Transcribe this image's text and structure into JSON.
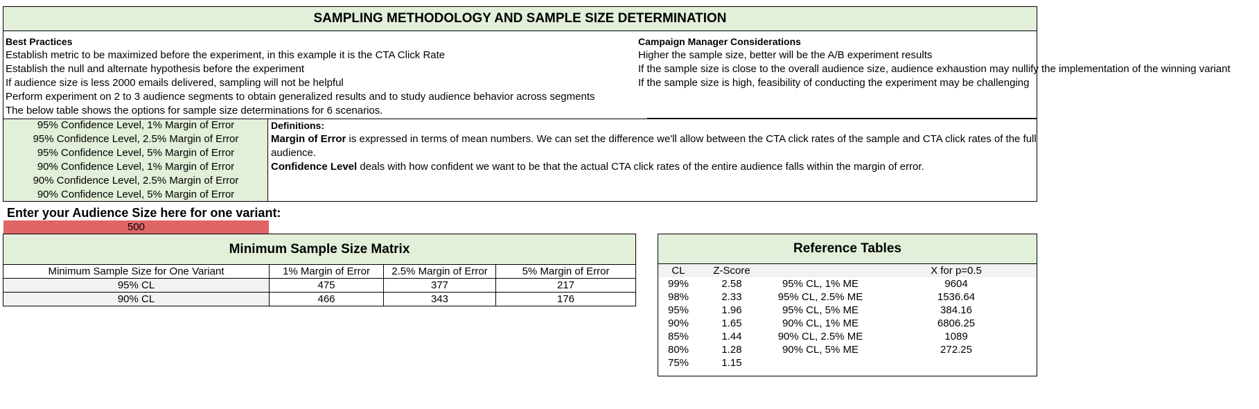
{
  "main_title": "SAMPLING METHODOLOGY AND SAMPLE SIZE DETERMINATION",
  "best_practices": {
    "heading": "Best Practices",
    "items": [
      "Establish metric to be maximized before the experiment, in this example it is the CTA Click Rate",
      "Establish the null and alternate hypothesis before the experiment",
      "If audience size is less 2000 emails delivered, sampling will not be helpful",
      "Perform experiment on 2 to 3 audience segments to obtain generalized results and to study audience behavior across segments",
      "The below table shows the options for sample size determinations for 6 scenarios."
    ]
  },
  "campaign_manager": {
    "heading": "Campaign Manager Considerations",
    "items": [
      "Higher the sample size, better will be the A/B experiment results",
      "If the sample size is close to the overall audience size, audience exhaustion may nullify the implementation of the winning variant",
      "If the sample size is high, feasibility of conducting the experiment may be challenging"
    ]
  },
  "scenarios": [
    "95% Confidence Level, 1% Margin of Error",
    "95% Confidence Level, 2.5% Margin of Error",
    "95% Confidence Level, 5% Margin of Error",
    "90% Confidence Level, 1% Margin of Error",
    "90% Confidence Level, 2.5% Margin of Error",
    "90% Confidence Level, 5% Margin of Error"
  ],
  "definitions": {
    "heading": "Definitions:",
    "moe_term": "Margin of Error",
    "moe_text_1": " is expressed in terms of mean numbers. We can set the difference we'll allow between the CTA click rates of the sample and CTA click rates of the full",
    "moe_text_2": "audience.",
    "cl_term": "Confidence Level",
    "cl_text": " deals with how confident we want to be that the actual CTA click rates of the entire audience falls within the margin of error."
  },
  "audience": {
    "label": "Enter your Audience Size here for one variant:",
    "value": "500"
  },
  "matrix": {
    "title": "Minimum Sample Size Matrix",
    "headers": [
      "Minimum Sample Size for One Variant",
      "1% Margin of Error",
      "2.5% Margin of Error",
      "5% Margin of Error"
    ],
    "rows": [
      [
        "95% CL",
        "475",
        "377",
        "217"
      ],
      [
        "90% CL",
        "466",
        "343",
        "176"
      ]
    ]
  },
  "reference": {
    "title": "Reference Tables",
    "headers": [
      "CL",
      "Z-Score",
      "",
      "X for p=0.5"
    ],
    "rows": [
      [
        "99%",
        "2.58",
        "95% CL, 1% ME",
        "9604"
      ],
      [
        "98%",
        "2.33",
        "95% CL, 2.5% ME",
        "1536.64"
      ],
      [
        "95%",
        "1.96",
        "95% CL, 5% ME",
        "384.16"
      ],
      [
        "90%",
        "1.65",
        "90% CL, 1% ME",
        "6806.25"
      ],
      [
        "85%",
        "1.44",
        "90% CL, 2.5% ME",
        "1089"
      ],
      [
        "80%",
        "1.28",
        "90% CL, 5% ME",
        "272.25"
      ],
      [
        "75%",
        "1.15",
        "",
        ""
      ]
    ]
  },
  "colors": {
    "header_green": "#e2efd9",
    "input_red": "#e06666",
    "row_gray": "#f2f2f2"
  }
}
